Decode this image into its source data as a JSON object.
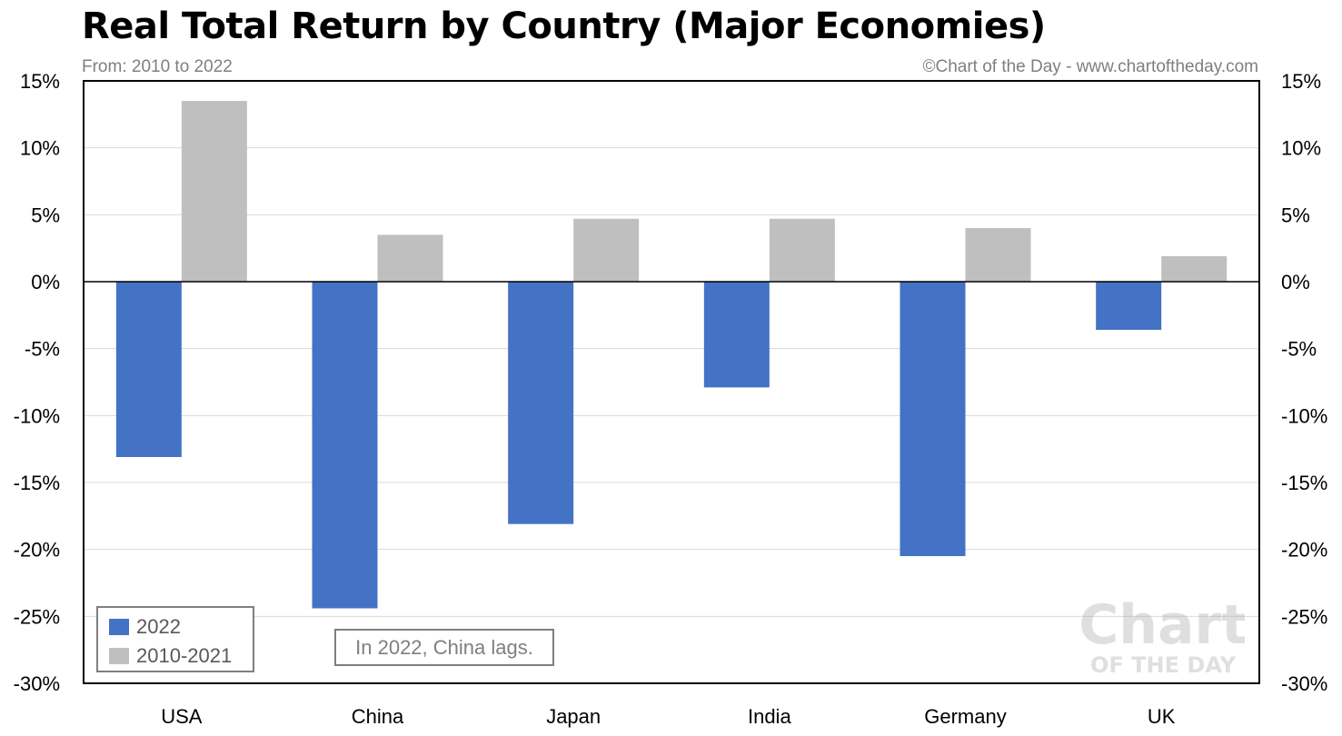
{
  "header": {
    "title": "Real Total Return by Country (Major Economies)",
    "subtitle": "From: 2010 to 2022",
    "credit": "©Chart of the Day - www.chartoftheday.com"
  },
  "legend": {
    "items": [
      {
        "label": "2022",
        "color": "#4472c4"
      },
      {
        "label": "2010-2021",
        "color": "#bfbfbf"
      }
    ]
  },
  "annotation": {
    "text": "In 2022, China lags."
  },
  "watermark": {
    "line1": "Chart",
    "line2": "OF THE DAY"
  },
  "chart_data": {
    "type": "bar",
    "title": "Real Total Return by Country (Major Economies)",
    "subtitle": "From: 2010 to 2022",
    "categories": [
      "USA",
      "China",
      "Japan",
      "India",
      "Germany",
      "UK"
    ],
    "series": [
      {
        "name": "2022",
        "color": "#4472c4",
        "values": [
          -13.1,
          -24.4,
          -18.1,
          -7.9,
          -20.5,
          -3.6
        ]
      },
      {
        "name": "2010-2021",
        "color": "#bfbfbf",
        "values": [
          13.5,
          3.5,
          4.7,
          4.7,
          4.0,
          1.9
        ]
      }
    ],
    "ylim": [
      -30,
      15
    ],
    "yticks": [
      15,
      10,
      5,
      0,
      -5,
      -10,
      -15,
      -20,
      -25,
      -30
    ],
    "ytick_labels": [
      "15%",
      "10%",
      "5%",
      "0%",
      "-5%",
      "-10%",
      "-15%",
      "-20%",
      "-25%",
      "-30%"
    ],
    "xlabel": "",
    "ylabel": "",
    "grid": true,
    "dual_y_axis": true,
    "legend_position": "bottom-left",
    "colors": {
      "axis": "#000000",
      "grid": "#d9d9d9",
      "text_muted": "#7f7f7f"
    }
  }
}
